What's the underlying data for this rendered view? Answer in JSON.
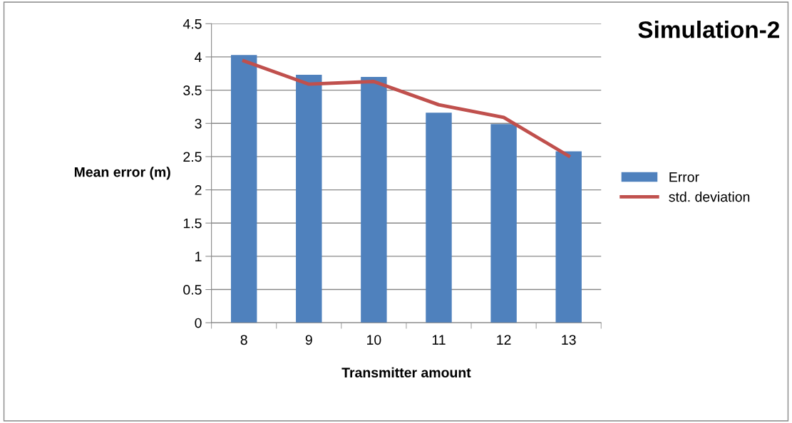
{
  "chart_data": {
    "type": "bar",
    "title": "Simulation-2",
    "xlabel": "Transmitter amount",
    "ylabel": "Mean error (m)",
    "categories": [
      "8",
      "9",
      "10",
      "11",
      "12",
      "13"
    ],
    "series": [
      {
        "name": "Error",
        "color": "#4f81bd",
        "values": [
          4.03,
          3.73,
          3.7,
          3.16,
          2.99,
          2.58
        ]
      },
      {
        "name": "std. deviation",
        "type": "line",
        "color": "#c0504d",
        "values": [
          3.94,
          3.59,
          3.63,
          3.28,
          3.09,
          2.51
        ]
      }
    ],
    "ylim": [
      0,
      4.5
    ],
    "yticks": [
      0,
      0.5,
      1,
      1.5,
      2,
      2.5,
      3,
      3.5,
      4,
      4.5
    ],
    "grid": "y",
    "legend": "right",
    "marker": "none",
    "line_style": "solid"
  }
}
